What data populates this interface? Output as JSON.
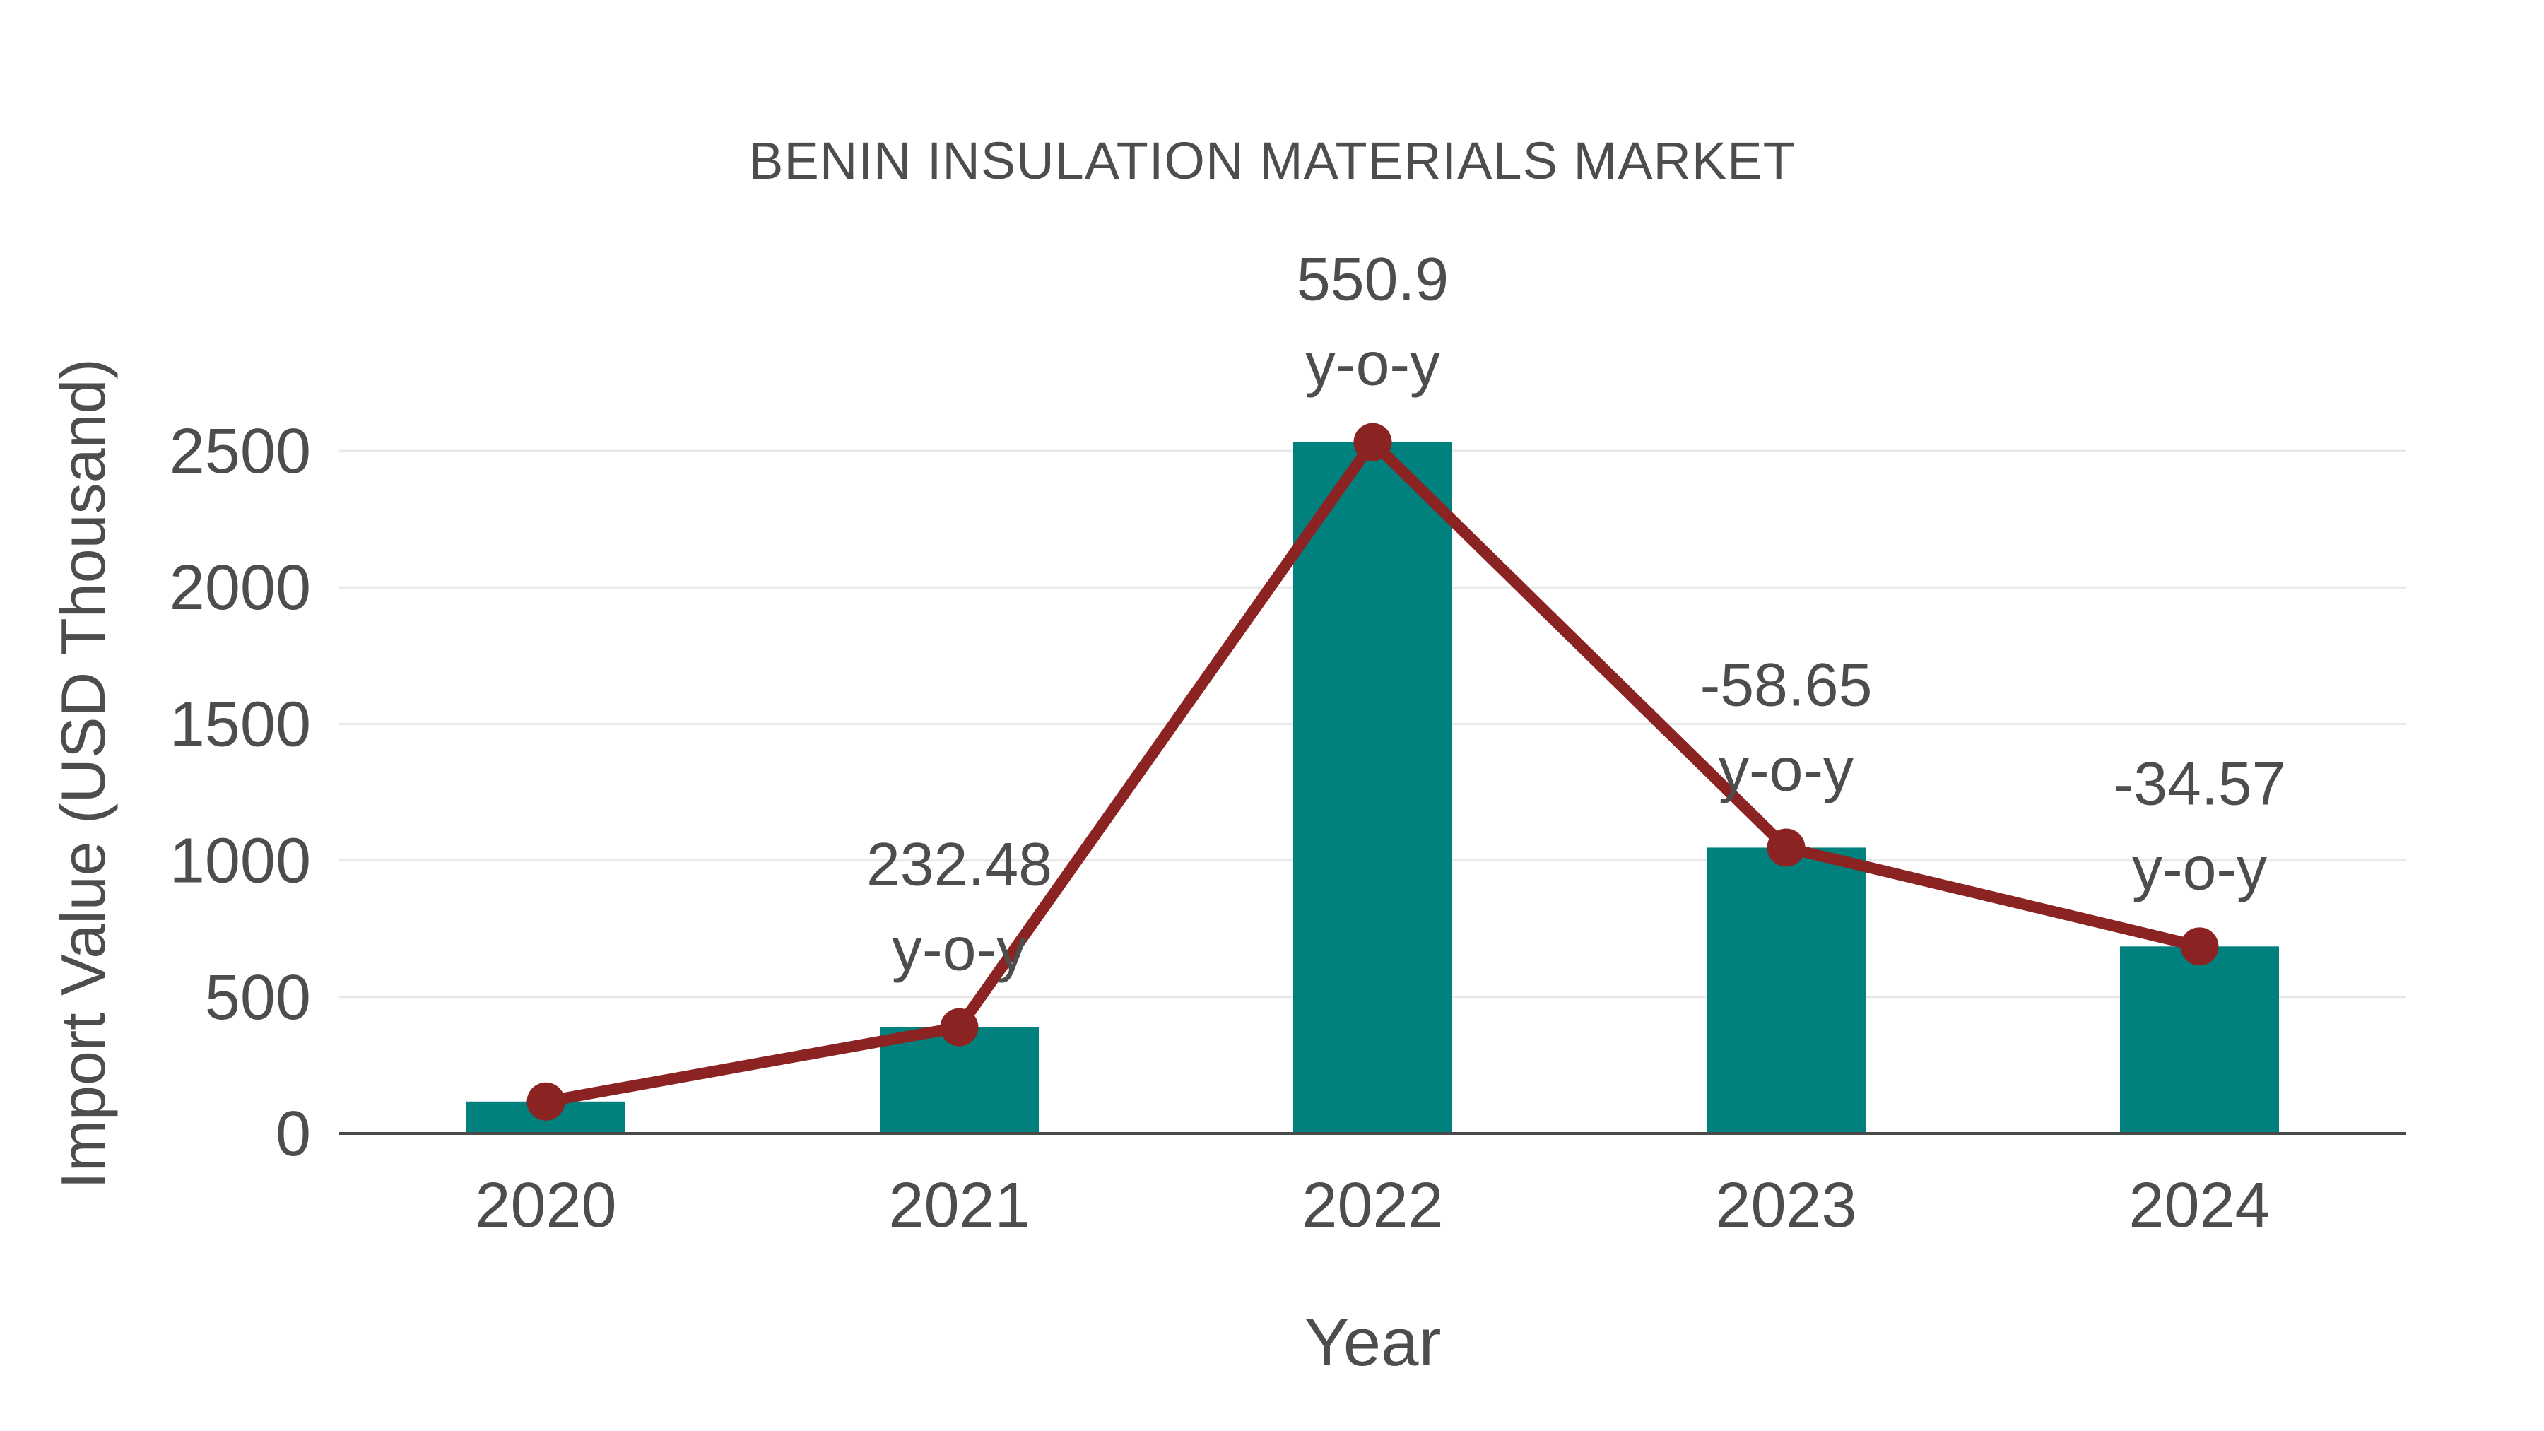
{
  "chart_data": {
    "type": "bar",
    "title": "BENIN INSULATION MATERIALS MARKET",
    "xlabel": "Year",
    "ylabel": "Import Value (USD Thousand)",
    "categories": [
      "2020",
      "2021",
      "2022",
      "2023",
      "2024"
    ],
    "values": [
      117,
      389,
      2532,
      1047,
      685
    ],
    "yticks": [
      0,
      500,
      1000,
      1500,
      2000,
      2500
    ],
    "ylim": [
      0,
      2600
    ],
    "grid": "horizontal",
    "legend_position": "none",
    "line_overlay": {
      "name": "y-o-y growth (%)",
      "passes_through": "bar tops",
      "marker": "circle",
      "labels": [
        "",
        "232.48",
        "550.9",
        "-58.65",
        "-34.57"
      ],
      "label_suffix": "y-o-y"
    },
    "colors": {
      "bar": "#00817D",
      "line": "#8B2322",
      "marker": "#8B2322",
      "grid": "#E7E7E7",
      "axis": "#4A4A4A",
      "text": "#4D4D4D",
      "background": "#FFFFFF"
    }
  }
}
